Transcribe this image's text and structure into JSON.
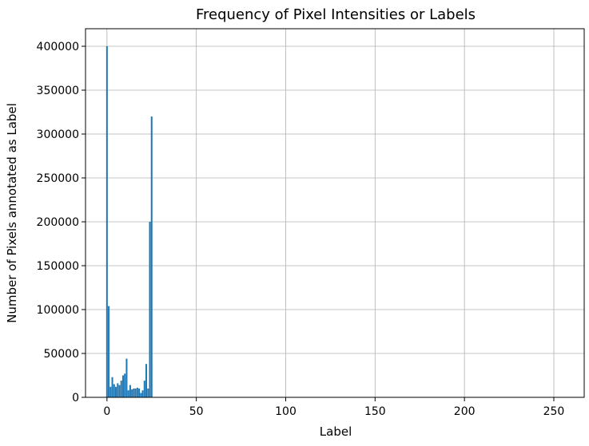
{
  "chart_data": {
    "type": "bar",
    "title": "Frequency of Pixel Intensities or Labels",
    "xlabel": "Label",
    "ylabel": "Number of Pixels annotated as Label",
    "xlim": [
      -12,
      267
    ],
    "ylim": [
      0,
      420000
    ],
    "x_ticks": [
      0,
      50,
      100,
      150,
      200,
      250
    ],
    "y_ticks": [
      0,
      50000,
      100000,
      150000,
      200000,
      250000,
      300000,
      350000,
      400000
    ],
    "x_tick_labels": [
      "0",
      "50",
      "100",
      "150",
      "200",
      "250"
    ],
    "y_tick_labels": [
      "0",
      "50000",
      "100000",
      "150000",
      "200000",
      "250000",
      "300000",
      "350000",
      "400000"
    ],
    "grid": true,
    "bar_color": "#1f77b4",
    "x": [
      0,
      1,
      2,
      3,
      4,
      5,
      6,
      7,
      8,
      9,
      10,
      11,
      12,
      13,
      14,
      15,
      16,
      17,
      18,
      19,
      20,
      21,
      22,
      23,
      24,
      25
    ],
    "values": [
      400000,
      104000,
      12000,
      23000,
      15000,
      12000,
      16000,
      14000,
      19000,
      25000,
      27000,
      44000,
      8000,
      14000,
      9000,
      10000,
      10000,
      11000,
      10000,
      5000,
      8000,
      19000,
      38000,
      10000,
      200000,
      320000
    ]
  }
}
